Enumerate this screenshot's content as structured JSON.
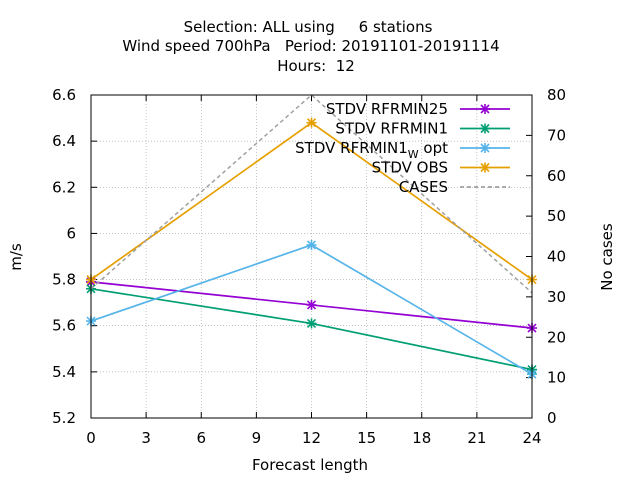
{
  "chart_data": {
    "type": "line",
    "title_lines": [
      "Selection: ALL using     6 stations",
      "Wind speed 700hPa   Period: 20191101-20191114",
      "Hours:  12"
    ],
    "xlabel": "Forecast length",
    "ylabel": "m/s",
    "y2label": "No cases",
    "x": [
      0,
      12,
      24
    ],
    "xlim": [
      0,
      24
    ],
    "ylim": [
      5.2,
      6.6
    ],
    "y2lim": [
      0,
      80
    ],
    "xticks": [
      0,
      3,
      6,
      9,
      12,
      15,
      18,
      21,
      24
    ],
    "yticks": [
      5.2,
      5.4,
      5.6,
      5.8,
      6,
      6.2,
      6.4,
      6.6
    ],
    "y2ticks": [
      0,
      10,
      20,
      30,
      40,
      50,
      60,
      70,
      80
    ],
    "xtick_labels": [
      "0",
      "3",
      "6",
      "9",
      "12",
      "15",
      "18",
      "21",
      "24"
    ],
    "ytick_labels": [
      "5.2",
      "5.4",
      "5.6",
      "5.8",
      "6",
      "6.2",
      "6.4",
      "6.6"
    ],
    "y2tick_labels": [
      "0",
      "10",
      "20",
      "30",
      "40",
      "50",
      "60",
      "70",
      "80"
    ],
    "grid": true,
    "legend_position": "top-right",
    "series": [
      {
        "name": "STDV RFRMIN25",
        "axis": "y",
        "color": "#9400d3",
        "values": [
          5.79,
          5.69,
          5.59
        ]
      },
      {
        "name": "STDV RFRMIN1",
        "axis": "y",
        "color": "#009e73",
        "values": [
          5.76,
          5.61,
          5.41
        ]
      },
      {
        "name": "STDV RFRMIN1",
        "name_subscript": "W",
        "name_suffix": " opt",
        "axis": "y",
        "color": "#56b4e9",
        "values": [
          5.62,
          5.95,
          5.39
        ]
      },
      {
        "name": "STDV OBS",
        "axis": "y",
        "color": "#e69f00",
        "values": [
          5.8,
          6.48,
          5.8
        ]
      },
      {
        "name": "CASES",
        "axis": "y2",
        "color": "#a0a0a0",
        "dashed": true,
        "values": [
          32,
          80,
          31
        ]
      }
    ]
  }
}
